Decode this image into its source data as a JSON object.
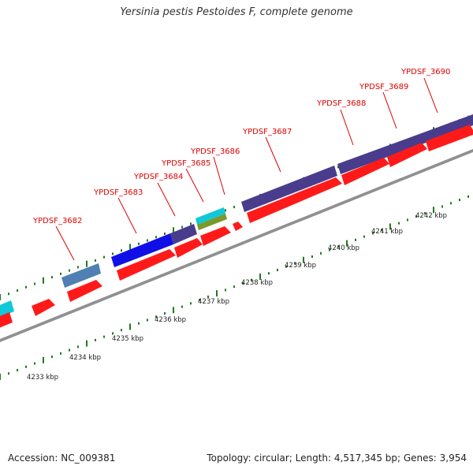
{
  "title": "Yersinia pestis Pestoides F, complete genome",
  "accession": "Accession: NC_009381",
  "topology": "Topology: circular; Length: 4,517,345 bp; Genes: 3,954",
  "colors": {
    "cds": "#ff1a1a",
    "label": "#e00000",
    "backbone": "#909090",
    "tick": "#1f7a1f",
    "blue": "#1010e6",
    "navy": "#4a3c8c",
    "steel": "#4f7fb3",
    "cyan": "#10c8d8",
    "olive": "#7a9a2a"
  },
  "kbp_labels": [
    "4233 kbp",
    "4234 kbp",
    "4235 kbp",
    "4236 kbp",
    "4237 kbp",
    "4238 kbp",
    "4239 kbp",
    "4240 kbp",
    "4241 kbp",
    "4242 kbp"
  ],
  "gene_labels": [
    "YPDSF_3682",
    "YPDSF_3683",
    "YPDSF_3684",
    "YPDSF_3685",
    "YPDSF_3686",
    "YPDSF_3687",
    "YPDSF_3688",
    "YPDSF_3689",
    "YPDSF_3690"
  ]
}
